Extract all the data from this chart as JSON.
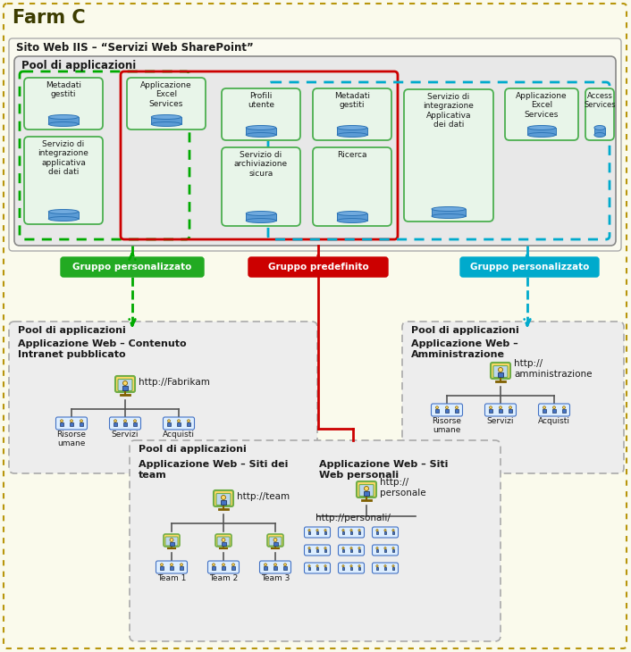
{
  "title": "Farm C",
  "bg_color": "#FAFAEC",
  "iis_label": "Sito Web IIS – “Servizi Web SharePoint”",
  "pool_top_label": "Pool di applicazioni",
  "green_group_label": "Gruppo personalizzato",
  "red_group_label": "Gruppo predefinito",
  "blue_group_label": "Gruppo personalizzato",
  "pool_left_label": "Pool di applicazioni",
  "pool_left_sub": "Applicazione Web – Contenuto\nIntranet pubblicato",
  "pool_left_url": "http://Fabrikam",
  "pool_left_children": [
    "Risorse\numane",
    "Servizi",
    "Acquisti"
  ],
  "pool_center_label": "Pool di applicazioni",
  "pool_center_sub1": "Applicazione Web – Siti dei\nteam",
  "pool_center_url1": "http://team",
  "pool_center_teams": [
    "Team 1",
    "Team 2",
    "Team 3"
  ],
  "pool_center_sub2": "Applicazione Web – Siti\nWeb personali",
  "pool_center_url2": "http://\npersonale",
  "pool_center_url3": "http://personali/",
  "pool_right_label": "Pool di applicazioni",
  "pool_right_sub": "Applicazione Web –\nAmministrazione",
  "pool_right_url": "http://\namministrazione",
  "pool_right_children": [
    "Risorse\numane",
    "Servizi",
    "Acquisti"
  ],
  "service_green1_top": "Metadati\ngestiti",
  "service_green1_bot": "Servizio di\nintegrazione\napplicativa\ndei dati",
  "service_red1": "Applicazione\nExcel\nServices",
  "service_blue1_top": "Profili\nutente",
  "service_blue1_bot": "Servizio di\narchiviazione\nsicura",
  "service_blue2_top": "Metadati\ngestiti",
  "service_blue2_bot": "Ricerca",
  "service_cyan1": "Servizio di\nintegrazione\nApplicativa\ndei dati",
  "service_cyan2": "Applicazione\nExcel\nServices",
  "service_cyan3": "Access\nServices"
}
